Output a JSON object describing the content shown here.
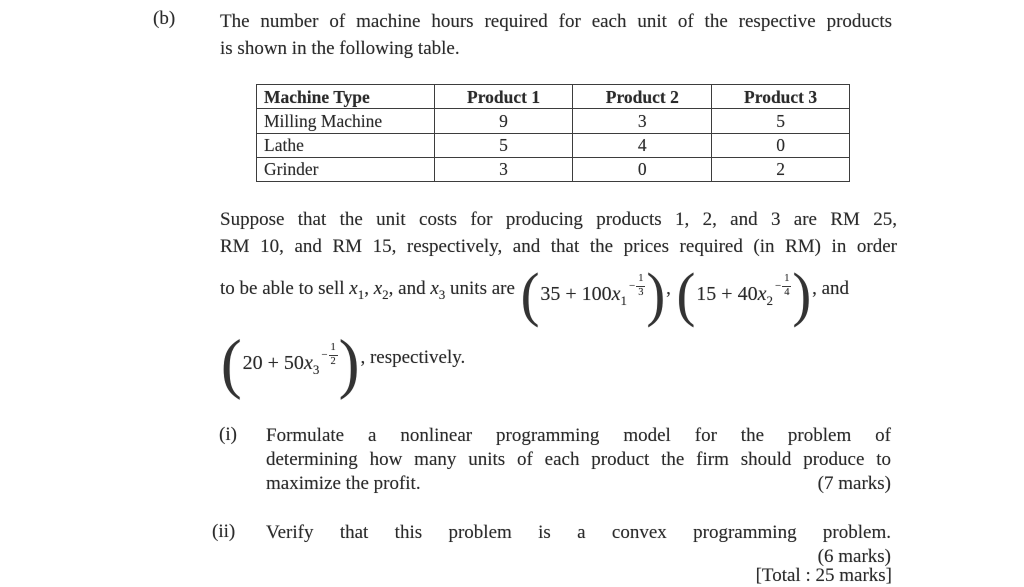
{
  "doc": {
    "part_label": "(b)",
    "intro_line1": "The number of machine hours required for each unit of the respective products",
    "intro_line2": "is shown in the following table.",
    "table": {
      "headers": [
        "Machine Type",
        "Product 1",
        "Product 2",
        "Product 3"
      ],
      "rows": [
        [
          "Milling Machine",
          "9",
          "3",
          "5"
        ],
        [
          "Lathe",
          "5",
          "4",
          "0"
        ],
        [
          "Grinder",
          "3",
          "0",
          "2"
        ]
      ]
    },
    "costs_line1": "Suppose that the unit costs for producing products 1, 2, and 3 are RM 25,",
    "costs_line2": "RM 10, and RM 15, respectively, and that the prices required (in RM) in order",
    "sell": {
      "t1": "to be able to sell",
      "x": "x",
      "s1": "1",
      "c1": ",",
      "s2": "2",
      "c2": ", and",
      "s3": "3",
      "t2": "units are",
      "sep": ",",
      "t3": ", and"
    },
    "formulas": [
      {
        "body": "35 + 100",
        "var": "x",
        "sub": "1",
        "exp_sign": "−",
        "exp_num": "1",
        "exp_den": "3"
      },
      {
        "body": "15 + 40",
        "var": "x",
        "sub": "2",
        "exp_sign": "−",
        "exp_num": "1",
        "exp_den": "4"
      },
      {
        "body": "20 + 50",
        "var": "x",
        "sub": "3",
        "exp_sign": "−",
        "exp_num": "1",
        "exp_den": "2"
      }
    ],
    "respectively": ", respectively.",
    "q1": {
      "label": "(i)",
      "line1": "Formulate a nonlinear programming model for the problem of",
      "line2": "determining how many units of each product the firm should produce to",
      "line3": "maximize the profit.",
      "marks": "(7 marks)"
    },
    "q2": {
      "label": "(ii)",
      "line1": "Verify that this problem is a convex programming problem.",
      "marks": "(6 marks)"
    },
    "total": "[Total : 25 marks]"
  }
}
